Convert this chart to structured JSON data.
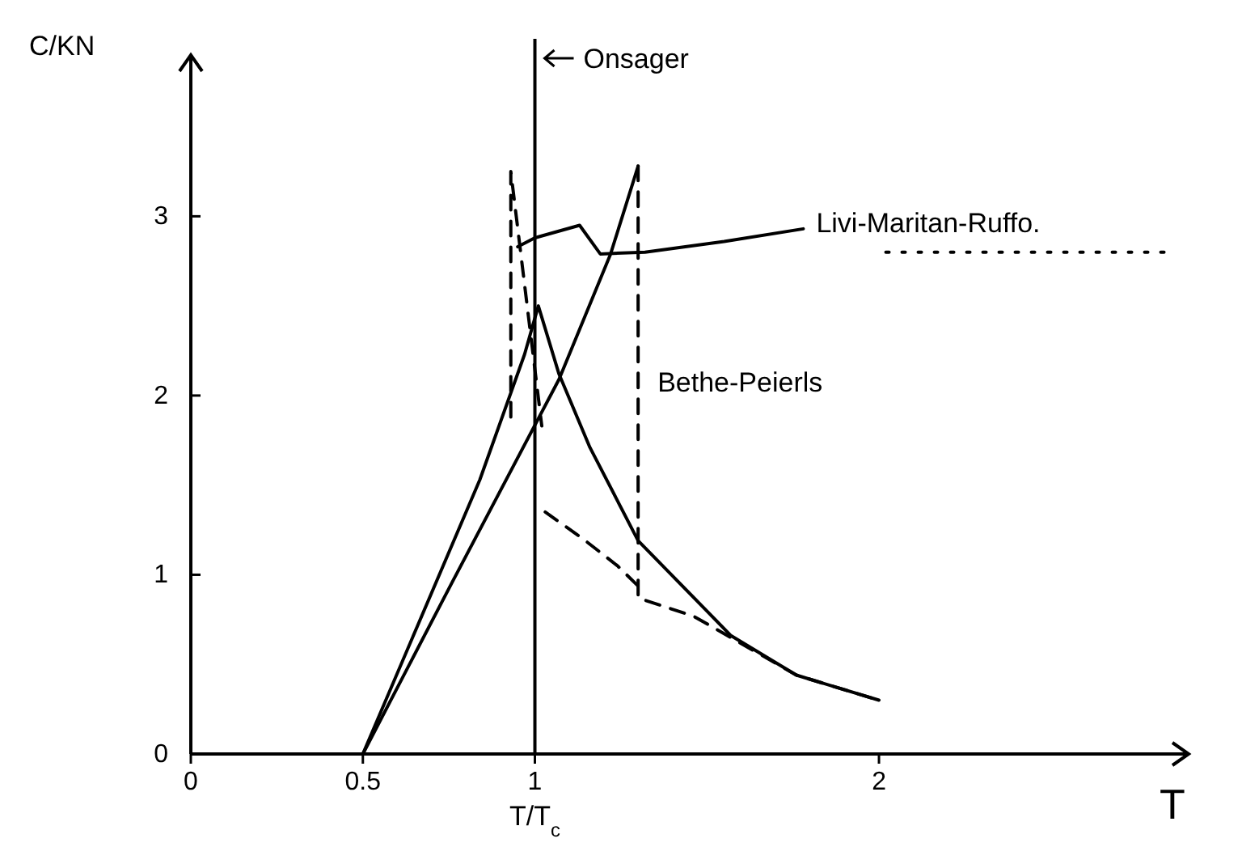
{
  "chart_data": {
    "type": "line",
    "ylabel": "C/KN",
    "xlabel": "T",
    "xlim": [
      0,
      2.9
    ],
    "ylim": [
      0,
      3.9
    ],
    "xticks": [
      0,
      0.5,
      1,
      2
    ],
    "yticks": [
      0,
      1,
      2,
      3
    ],
    "annotations": [
      {
        "text": "T/T$_{c}$",
        "x": 1,
        "y": 0
      }
    ],
    "ref_lines": [
      {
        "axis": "x",
        "value": 1,
        "label": "Onsager",
        "color": "#000000"
      }
    ],
    "series": [
      {
        "color": "#000000",
        "line_style": "solid",
        "x": [
          0.5,
          0.66,
          0.84,
          0.97,
          1.01,
          1.07,
          1.16,
          1.3,
          1.57,
          1.76,
          2.0
        ],
        "values": [
          0,
          0.72,
          1.53,
          2.23,
          2.5,
          2.12,
          1.71,
          1.19,
          0.66,
          0.44,
          0.3
        ]
      },
      {
        "color": "#000000",
        "line_style": "solid",
        "x": [
          0.5,
          0.76,
          1.07,
          1.22,
          1.3
        ],
        "values": [
          0,
          0.96,
          2.09,
          2.79,
          3.28
        ]
      },
      {
        "name": "Bethe-Peierls",
        "color": "#000000",
        "line_style": "dashed",
        "x": [
          1.3,
          1.3,
          1.46,
          1.76,
          2.0
        ],
        "values": [
          3.28,
          0.87,
          0.77,
          0.44,
          0.3
        ]
      },
      {
        "name": "Livi-Maritan-Ruffo.",
        "color": "#000000",
        "line_style": "solid",
        "x": [
          0.95,
          1.0,
          1.13,
          1.19,
          1.32,
          1.55,
          1.78
        ],
        "values": [
          2.83,
          2.88,
          2.95,
          2.79,
          2.8,
          2.86,
          2.93
        ]
      },
      {
        "color": "#000000",
        "line_style": "dotted",
        "x": [
          2.02,
          2.3,
          2.55,
          2.84
        ],
        "values": [
          2.8,
          2.8,
          2.8,
          2.8
        ]
      },
      {
        "color": "#000000",
        "line_style": "dashed",
        "x": [
          0.93,
          0.93,
          1.02
        ],
        "values": [
          1.88,
          3.25,
          1.83
        ]
      },
      {
        "color": "#000000",
        "line_style": "dashed",
        "x": [
          1.03,
          1.14,
          1.24,
          1.32
        ],
        "values": [
          1.35,
          1.2,
          1.05,
          0.9
        ]
      }
    ]
  }
}
